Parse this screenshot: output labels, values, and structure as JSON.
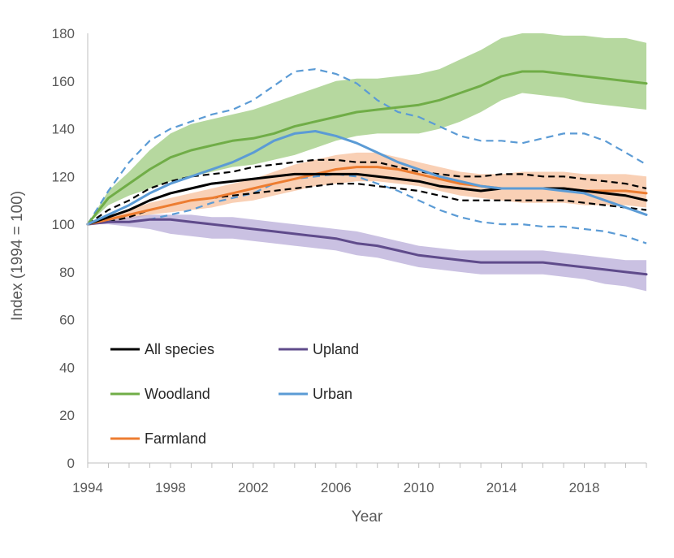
{
  "chart_data": {
    "type": "line",
    "title": "",
    "xlabel": "Year",
    "ylabel": "Index (1994 = 100)",
    "xlim": [
      1994,
      2021
    ],
    "ylim": [
      0,
      180
    ],
    "x_ticks": [
      1994,
      1998,
      2002,
      2006,
      2010,
      2014,
      2018
    ],
    "x_tick_labels": [
      "1994",
      "1998",
      "2002",
      "2006",
      "2010",
      "2014",
      "2018"
    ],
    "y_ticks": [
      0,
      20,
      40,
      60,
      80,
      100,
      120,
      140,
      160,
      180
    ],
    "y_tick_labels": [
      "0",
      "20",
      "40",
      "60",
      "80",
      "100",
      "120",
      "140",
      "160",
      "180"
    ],
    "grid": false,
    "legend_position": "bottom-left inside",
    "x": [
      1994,
      1995,
      1996,
      1997,
      1998,
      1999,
      2000,
      2001,
      2002,
      2003,
      2004,
      2005,
      2006,
      2007,
      2008,
      2009,
      2010,
      2011,
      2012,
      2013,
      2014,
      2015,
      2016,
      2017,
      2018,
      2019,
      2020,
      2021
    ],
    "series": [
      {
        "name": "Woodland",
        "color": "#70AD47",
        "values": [
          100,
          111,
          117,
          123,
          128,
          131,
          133,
          135,
          136,
          138,
          141,
          143,
          145,
          147,
          148,
          149,
          150,
          152,
          155,
          158,
          162,
          164,
          164,
          163,
          162,
          161,
          160,
          159
        ],
        "band_upper": [
          100,
          114,
          122,
          131,
          138,
          142,
          144,
          146,
          148,
          151,
          154,
          157,
          160,
          161,
          161,
          162,
          163,
          165,
          169,
          173,
          178,
          180,
          180,
          179,
          179,
          178,
          178,
          176
        ],
        "band_lower": [
          100,
          108,
          112,
          115,
          118,
          120,
          122,
          124,
          125,
          127,
          129,
          132,
          135,
          137,
          138,
          138,
          138,
          140,
          143,
          147,
          152,
          155,
          154,
          153,
          151,
          150,
          149,
          148
        ]
      },
      {
        "name": "Farmland",
        "color": "#ED7D31",
        "values": [
          100,
          102,
          104,
          106,
          108,
          110,
          111,
          113,
          115,
          117,
          119,
          121,
          123,
          124,
          124,
          123,
          121,
          119,
          117,
          116,
          115,
          115,
          115,
          115,
          114,
          114,
          114,
          113
        ],
        "band_upper": [
          100,
          103,
          106,
          109,
          111,
          113,
          115,
          117,
          119,
          122,
          125,
          127,
          129,
          130,
          130,
          128,
          126,
          124,
          122,
          121,
          121,
          122,
          122,
          122,
          121,
          121,
          121,
          120
        ],
        "band_lower": [
          100,
          101,
          102,
          104,
          105,
          106,
          107,
          109,
          110,
          112,
          114,
          116,
          117,
          118,
          118,
          117,
          116,
          114,
          112,
          111,
          110,
          109,
          109,
          109,
          108,
          108,
          108,
          107
        ]
      },
      {
        "name": "Upland",
        "color": "#5F4B8B",
        "values": [
          100,
          101,
          101,
          102,
          102,
          101,
          100,
          99,
          98,
          97,
          96,
          95,
          94,
          92,
          91,
          89,
          87,
          86,
          85,
          84,
          84,
          84,
          84,
          83,
          82,
          81,
          80,
          79
        ],
        "band_upper": [
          100,
          102,
          103,
          104,
          104,
          104,
          103,
          103,
          102,
          101,
          100,
          99,
          98,
          97,
          95,
          93,
          91,
          90,
          89,
          89,
          89,
          89,
          89,
          88,
          87,
          86,
          85,
          85
        ],
        "band_lower": [
          100,
          100,
          99,
          98,
          96,
          95,
          94,
          94,
          93,
          92,
          91,
          90,
          89,
          87,
          86,
          84,
          82,
          81,
          80,
          79,
          79,
          79,
          79,
          78,
          77,
          75,
          74,
          72
        ]
      },
      {
        "name": "All species",
        "color": "#000000",
        "values": [
          100,
          103,
          106,
          110,
          113,
          115,
          117,
          118,
          119,
          120,
          121,
          121,
          121,
          121,
          120,
          119,
          118,
          116,
          115,
          114,
          115,
          115,
          115,
          115,
          114,
          113,
          112,
          110
        ],
        "band_upper": [
          100,
          106,
          110,
          115,
          118,
          120,
          121,
          122,
          124,
          125,
          126,
          127,
          127,
          126,
          126,
          124,
          122,
          121,
          120,
          120,
          121,
          121,
          120,
          120,
          119,
          118,
          117,
          115
        ],
        "band_lower": [
          100,
          101,
          103,
          106,
          108,
          110,
          111,
          112,
          113,
          114,
          115,
          116,
          117,
          117,
          116,
          115,
          114,
          112,
          110,
          110,
          110,
          110,
          110,
          110,
          109,
          108,
          107,
          106
        ]
      },
      {
        "name": "Urban",
        "color": "#5B9BD5",
        "values": [
          100,
          104,
          108,
          113,
          117,
          120,
          123,
          126,
          130,
          135,
          138,
          139,
          137,
          134,
          130,
          126,
          123,
          120,
          118,
          116,
          115,
          115,
          115,
          114,
          113,
          110,
          107,
          104
        ],
        "band_upper": [
          100,
          114,
          126,
          135,
          140,
          143,
          146,
          148,
          152,
          158,
          164,
          165,
          163,
          159,
          152,
          147,
          145,
          141,
          137,
          135,
          135,
          134,
          136,
          138,
          138,
          135,
          130,
          125
        ],
        "band_lower": [
          100,
          101,
          101,
          102,
          104,
          106,
          109,
          111,
          113,
          117,
          119,
          120,
          121,
          120,
          117,
          114,
          110,
          106,
          103,
          101,
          100,
          100,
          99,
          99,
          98,
          97,
          95,
          92
        ]
      }
    ],
    "legend": [
      {
        "name": "All species",
        "color": "#000000"
      },
      {
        "name": "Upland",
        "color": "#5F4B8B"
      },
      {
        "name": "Woodland",
        "color": "#70AD47"
      },
      {
        "name": "Urban",
        "color": "#5B9BD5"
      },
      {
        "name": "Farmland",
        "color": "#ED7D31"
      }
    ]
  }
}
